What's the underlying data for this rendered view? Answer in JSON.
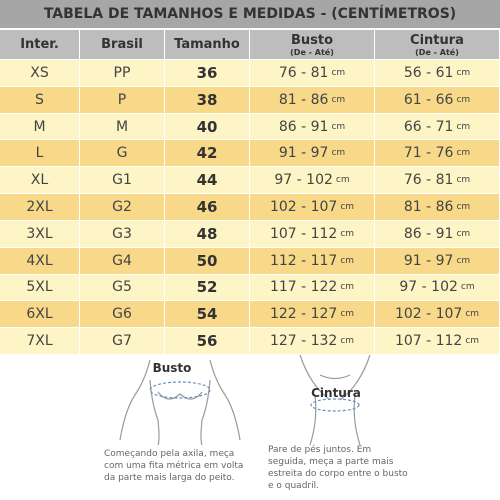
{
  "title": "TABELA DE TAMANHOS E MEDIDAS - (CENTÍMETROS)",
  "table": {
    "header": [
      {
        "label": "Inter."
      },
      {
        "label": "Brasil"
      },
      {
        "label": "Tamanho"
      },
      {
        "label": "Busto",
        "sub": "(De - Até)"
      },
      {
        "label": "Cintura",
        "sub": "(De - Até)"
      }
    ],
    "rows": [
      [
        "XS",
        "PP",
        "36",
        {
          "range": "76 - 81",
          "unit": "cm"
        },
        {
          "range": "56 - 61",
          "unit": "cm"
        }
      ],
      [
        "S",
        "P",
        "38",
        {
          "range": "81 - 86",
          "unit": "cm"
        },
        {
          "range": "61 - 66",
          "unit": "cm"
        }
      ],
      [
        "M",
        "M",
        "40",
        {
          "range": "86 - 91",
          "unit": "cm"
        },
        {
          "range": "66 - 71",
          "unit": "cm"
        }
      ],
      [
        "L",
        "G",
        "42",
        {
          "range": "91 - 97",
          "unit": "cm"
        },
        {
          "range": "71 - 76",
          "unit": "cm"
        }
      ],
      [
        "XL",
        "G1",
        "44",
        {
          "range": "97 - 102",
          "unit": "cm"
        },
        {
          "range": "76 - 81",
          "unit": "cm"
        }
      ],
      [
        "2XL",
        "G2",
        "46",
        {
          "range": "102 - 107",
          "unit": "cm"
        },
        {
          "range": "81 - 86",
          "unit": "cm"
        }
      ],
      [
        "3XL",
        "G3",
        "48",
        {
          "range": "107 - 112",
          "unit": "cm"
        },
        {
          "range": "86 - 91",
          "unit": "cm"
        }
      ],
      [
        "4XL",
        "G4",
        "50",
        {
          "range": "112 - 117",
          "unit": "cm"
        },
        {
          "range": "91 - 97",
          "unit": "cm"
        }
      ],
      [
        "5XL",
        "G5",
        "52",
        {
          "range": "117 - 122",
          "unit": "cm"
        },
        {
          "range": "97 - 102",
          "unit": "cm"
        }
      ],
      [
        "6XL",
        "G6",
        "54",
        {
          "range": "122 - 127",
          "unit": "cm"
        },
        {
          "range": "102 - 107",
          "unit": "cm"
        }
      ],
      [
        "7XL",
        "G7",
        "56",
        {
          "range": "127 - 132",
          "unit": "cm"
        },
        {
          "range": "107 - 112",
          "unit": "cm"
        }
      ]
    ]
  },
  "figures": [
    {
      "label": "Busto",
      "caption": [
        "Começando pela axila, meça",
        "com uma fita métrica em volta",
        "da parte mais larga do peito."
      ]
    },
    {
      "label": "Cintura",
      "caption": [
        "Pare de pés juntos. Em",
        "seguida, meça a parte mais",
        "estreita do corpo entre o busto",
        "e o quadril."
      ]
    }
  ]
}
